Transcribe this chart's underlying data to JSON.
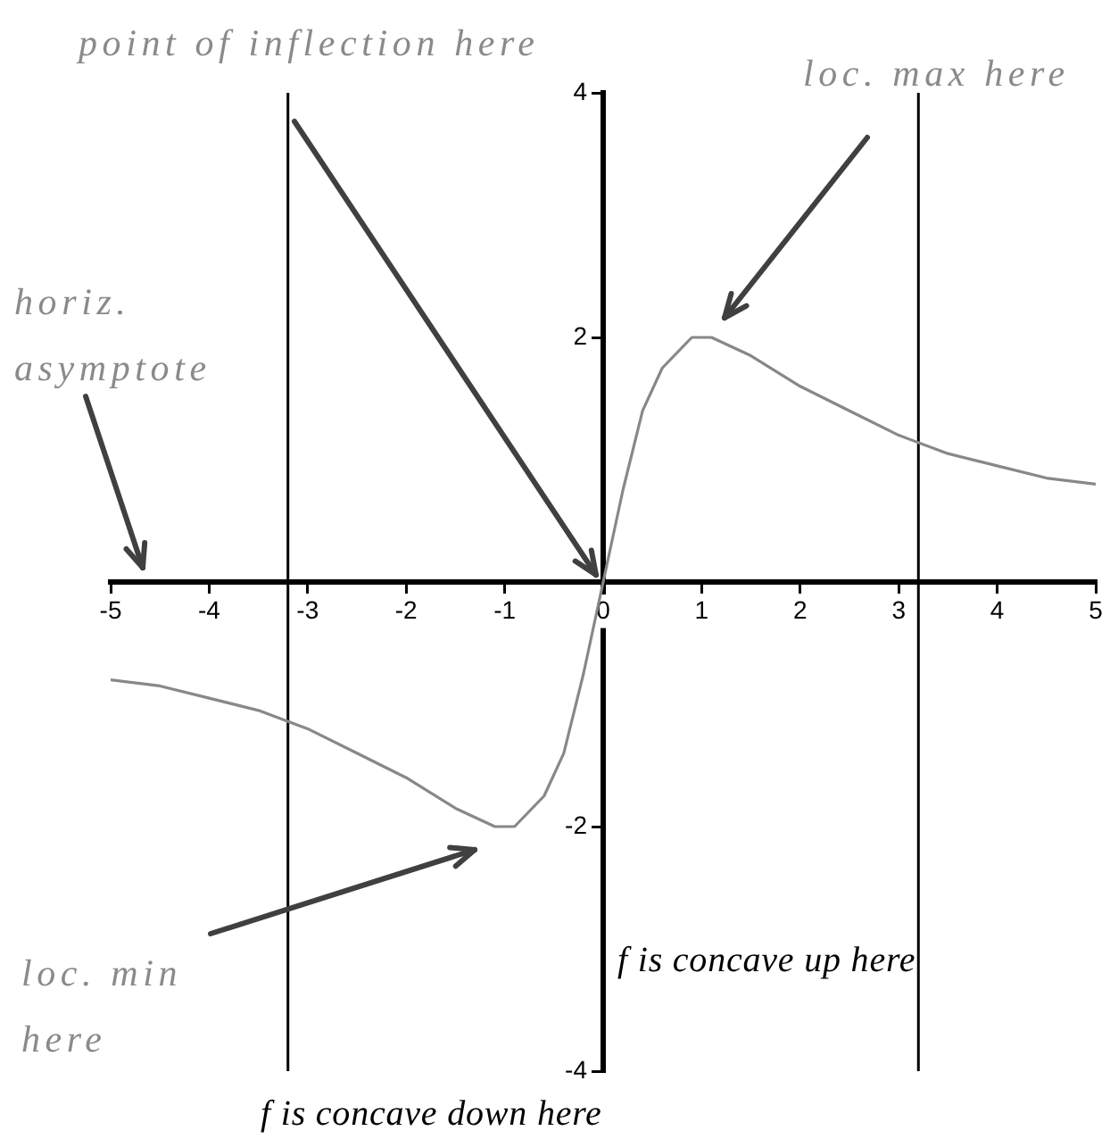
{
  "chart_data": {
    "type": "line",
    "x": [
      -5,
      -4.5,
      -4,
      -3.5,
      -3,
      -2.5,
      -2,
      -1.5,
      -1.1,
      -0.9,
      -0.6,
      -0.4,
      -0.2,
      0,
      0.2,
      0.4,
      0.6,
      0.9,
      1.1,
      1.5,
      2,
      2.5,
      3,
      3.5,
      4,
      4.5,
      5
    ],
    "series": [
      {
        "color": "#888888",
        "values": [
          -0.8,
          -0.85,
          -0.95,
          -1.05,
          -1.2,
          -1.4,
          -1.6,
          -1.85,
          -2,
          -2,
          -1.75,
          -1.4,
          -0.75,
          0,
          0.75,
          1.4,
          1.75,
          2,
          2,
          1.85,
          1.6,
          1.4,
          1.2,
          1.05,
          0.95,
          0.85,
          0.8
        ]
      }
    ],
    "xlim": [
      -5,
      5
    ],
    "ylim": [
      -4,
      4
    ],
    "xticks": [
      -5,
      -4,
      -3,
      -2,
      -1,
      0,
      1,
      2,
      3,
      4,
      5
    ],
    "yticks": [
      -4,
      -2,
      2,
      4
    ],
    "ref_lines": [
      {
        "axis": "x",
        "value": -3.2,
        "color": "#000000"
      },
      {
        "axis": "x",
        "value": 3.2,
        "color": "#000000"
      }
    ],
    "annotations": [
      "point of inflection here",
      "loc. max here",
      "horiz. asymptote",
      "loc. min here",
      "f is concave up here",
      "f is concave down here"
    ],
    "grid": false,
    "legend": false,
    "marker": "none",
    "line_style": "solid"
  }
}
